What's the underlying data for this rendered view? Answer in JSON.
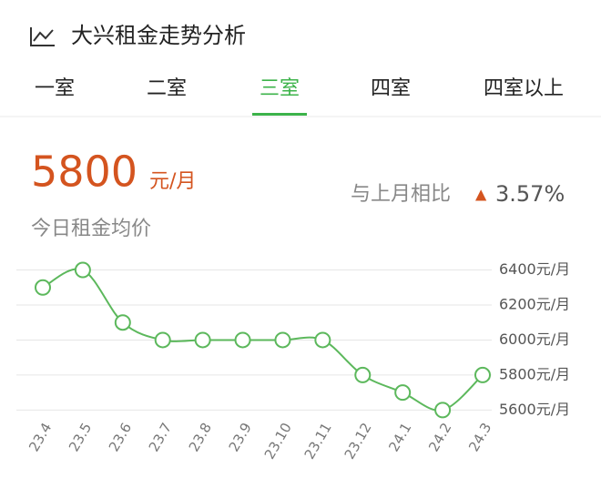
{
  "header": {
    "title": "大兴租金走势分析"
  },
  "tabs": [
    "一室",
    "二室",
    "三室",
    "四室",
    "四室以上"
  ],
  "active_tab": 2,
  "price": {
    "value": "5800",
    "unit": "元/月",
    "caption": "今日租金均价",
    "compare_label": "与上月相比",
    "change_arrow": "▲",
    "change": "3.57%"
  },
  "chart_data": {
    "type": "line",
    "categories": [
      "23.4",
      "23.5",
      "23.6",
      "23.7",
      "23.8",
      "23.9",
      "23.10",
      "23.11",
      "23.12",
      "24.1",
      "24.2",
      "24.3"
    ],
    "series": [
      {
        "color": "#5cb85c",
        "values": [
          6300,
          6400,
          6100,
          6000,
          6000,
          6000,
          6000,
          6000,
          5800,
          5700,
          5600,
          5800
        ]
      }
    ],
    "ylim": [
      5550,
      6460
    ],
    "yticks": [
      {
        "value": 5600,
        "label": "5600元/月"
      },
      {
        "value": 5800,
        "label": "5800元/月"
      },
      {
        "value": 6000,
        "label": "6000元/月"
      },
      {
        "value": 6200,
        "label": "6200元/月"
      },
      {
        "value": 6400,
        "label": "6400元/月"
      }
    ],
    "grid": true
  }
}
